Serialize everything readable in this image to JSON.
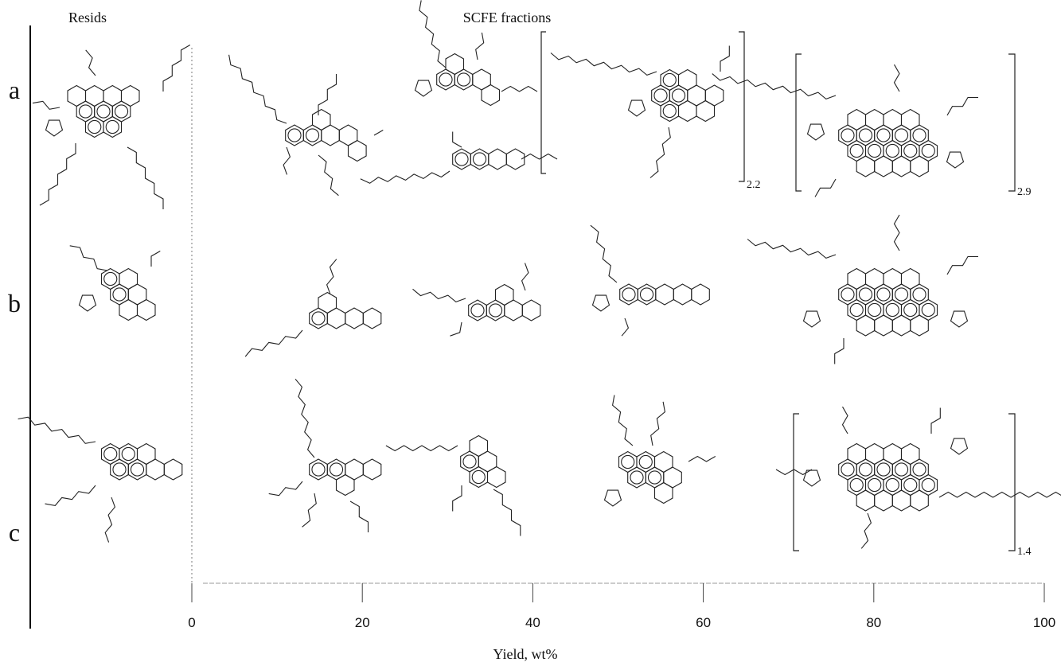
{
  "header": {
    "left": "Resids",
    "right": "SCFE fractions"
  },
  "rows": [
    "a",
    "b",
    "c"
  ],
  "subscripts": [
    "2.2",
    "2.9",
    "1.4"
  ],
  "axis": {
    "label": "Yield, wt%",
    "range": [
      0,
      100
    ],
    "ticks": [
      0,
      20,
      40,
      60,
      80,
      100
    ]
  }
}
